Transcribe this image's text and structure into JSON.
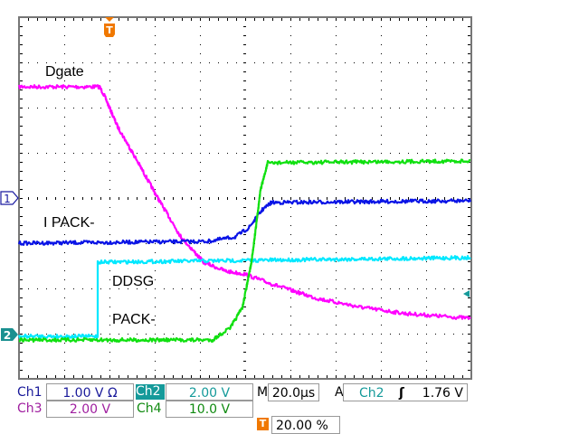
{
  "chart_data": {
    "type": "line",
    "xunit": "µs",
    "yunit": "div",
    "xlim": [
      -40,
      160
    ],
    "ylim": [
      -4,
      4
    ],
    "grid": true,
    "trace_labels": {
      "dgate": "Dgate",
      "ipack": "I PACK-",
      "ddsg": "DDSG",
      "pack": "PACK-"
    },
    "series": [
      {
        "channel": "Ch3",
        "color": "#ff00ff",
        "x": [
          -40,
          -4.4,
          -2.4,
          3.6,
          11.6,
          21.6,
          31.6,
          41.6,
          51.6,
          59.6,
          71.6,
          91.6,
          111.6,
          131.6,
          159.6
        ],
        "y": [
          2.46,
          2.46,
          2.28,
          1.58,
          0.88,
          -0.02,
          -0.86,
          -1.42,
          -1.62,
          -1.68,
          -1.9,
          -2.22,
          -2.42,
          -2.56,
          -2.66
        ]
      },
      {
        "channel": "Ch1",
        "color": "#0a14e6",
        "x": [
          -40,
          43.6,
          55.6,
          61.6,
          67.6,
          71.6,
          159.6
        ],
        "y": [
          -1.0,
          -0.96,
          -0.86,
          -0.66,
          -0.26,
          -0.1,
          -0.06
        ]
      },
      {
        "channel": "Ch2",
        "color": "#00e8ff",
        "x": [
          -40,
          -5.2,
          -5.2,
          159.6
        ],
        "y": [
          -3.06,
          -3.06,
          -1.42,
          -1.32
        ]
      },
      {
        "channel": "Ch4",
        "color": "#10e010",
        "x": [
          -40,
          45.6,
          53.6,
          58.8,
          62.8,
          66.8,
          70,
          159.6
        ],
        "y": [
          -3.14,
          -3.14,
          -2.86,
          -2.42,
          -1.42,
          0.18,
          0.78,
          0.82
        ]
      }
    ],
    "markers": {
      "ch1_ref": "1",
      "ch2_ref": "2",
      "trigger": "T"
    }
  },
  "status": {
    "ch1": {
      "label": "Ch1",
      "value": "1.00 V Ω",
      "color": "#1a1a9a"
    },
    "ch2": {
      "label": "Ch2",
      "value": "2.00 V",
      "color": "#159a9a"
    },
    "ch3": {
      "label": "Ch3",
      "value": "2.00 V",
      "color": "#a020a0"
    },
    "ch4": {
      "label": "Ch4",
      "value": "10.0 V",
      "color": "#108a10"
    },
    "timebase": {
      "label": "M",
      "value": "20.0µs"
    },
    "trigger": {
      "label": "A",
      "source": "Ch2",
      "slope": "rising-edge-icon",
      "slope_glyph": "ʃ",
      "level": "1.76 V"
    },
    "position": {
      "icon": "T",
      "value": "20.00 %"
    }
  }
}
